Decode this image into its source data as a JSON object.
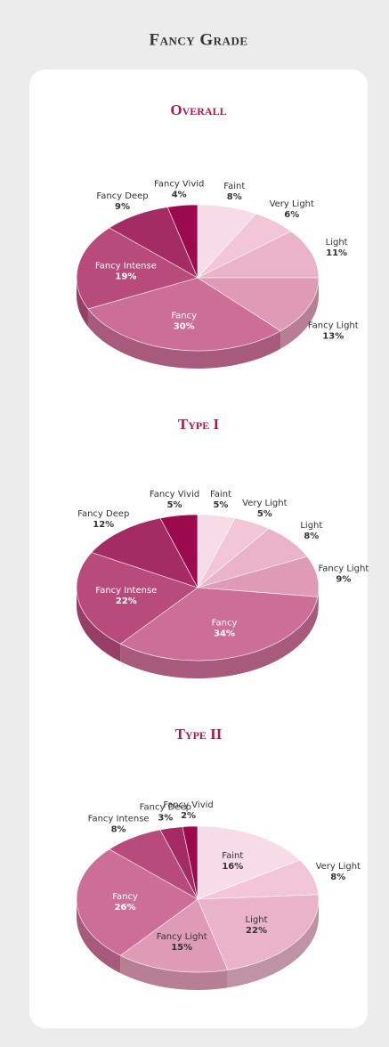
{
  "title": "Fancy Grade",
  "chart_data": [
    {
      "type": "pie",
      "title": "Overall",
      "categories": [
        "Faint",
        "Very Light",
        "Light",
        "Fancy Light",
        "Fancy",
        "Fancy Intense",
        "Fancy Deep",
        "Fancy Vivid"
      ],
      "values": [
        8,
        6,
        11,
        13,
        30,
        19,
        9,
        4
      ],
      "value_labels": [
        "8%",
        "6%",
        "11%",
        "13%",
        "30%",
        "19%",
        "9%",
        "4%"
      ],
      "colors": [
        "#f7dbe6",
        "#f2c6d7",
        "#eab3c8",
        "#df9ab5",
        "#cc6e97",
        "#b84b7c",
        "#a52b64",
        "#9c0a4e"
      ]
    },
    {
      "type": "pie",
      "title": "Type I",
      "categories": [
        "Faint",
        "Very Light",
        "Light",
        "Fancy Light",
        "Fancy",
        "Fancy Intense",
        "Fancy Deep",
        "Fancy Vivid"
      ],
      "values": [
        5,
        5,
        8,
        9,
        34,
        22,
        12,
        5
      ],
      "value_labels": [
        "5%",
        "5%",
        "8%",
        "9%",
        "34%",
        "22%",
        "12%",
        "5%"
      ],
      "colors": [
        "#f7dbe6",
        "#f2c6d7",
        "#eab3c8",
        "#df9ab5",
        "#cc6e97",
        "#b84b7c",
        "#a52b64",
        "#9c0a4e"
      ]
    },
    {
      "type": "pie",
      "title": "Type II",
      "categories": [
        "Faint",
        "Very Light",
        "Light",
        "Fancy Light",
        "Fancy",
        "Fancy Intense",
        "Fancy Deep",
        "Fancy Vivid"
      ],
      "values": [
        16,
        8,
        22,
        15,
        26,
        8,
        3,
        2
      ],
      "value_labels": [
        "16%",
        "8%",
        "22%",
        "15%",
        "26%",
        "8%",
        "3%",
        "2%"
      ],
      "colors": [
        "#f7dbe6",
        "#f2c6d7",
        "#eab3c8",
        "#df9ab5",
        "#cc6e97",
        "#b84b7c",
        "#a52b64",
        "#9c0a4e"
      ]
    }
  ]
}
